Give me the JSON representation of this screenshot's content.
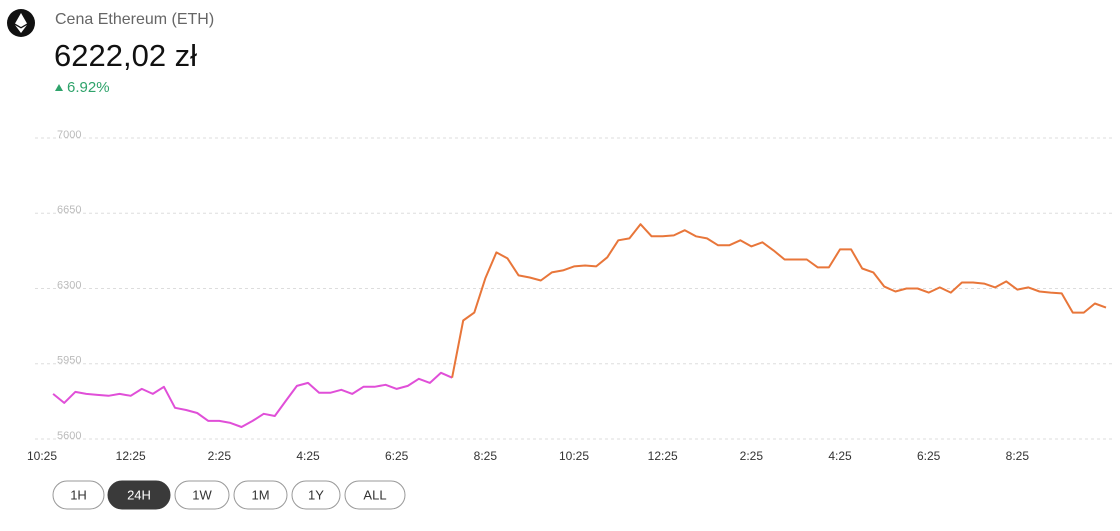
{
  "header": {
    "title": "Cena Ethereum (ETH)",
    "price": "6222,02 zł",
    "change": "6.92%"
  },
  "chart_data": {
    "type": "line",
    "x": [
      15,
      30,
      45,
      60,
      75,
      90,
      105,
      120,
      135,
      150,
      165,
      180,
      195,
      210,
      225,
      240,
      255,
      270,
      285,
      300,
      315,
      330,
      345,
      360,
      375,
      390,
      405,
      420,
      435,
      450,
      465,
      480,
      495,
      510,
      525,
      540,
      555,
      570,
      585,
      600,
      615,
      630,
      645,
      660,
      675,
      690,
      705,
      720,
      735,
      750,
      765,
      780,
      795,
      810,
      825,
      840,
      855,
      870,
      885,
      900,
      915,
      930,
      945,
      960,
      975,
      990,
      1005,
      1020,
      1035,
      1050,
      1065,
      1080,
      1095,
      1110,
      1125,
      1140,
      1155,
      1170,
      1185,
      1200,
      1215,
      1230,
      1245,
      1260,
      1275,
      1290,
      1305,
      1320,
      1335,
      1350,
      1365,
      1380,
      1395,
      1410,
      1425,
      1440
    ],
    "series": [
      {
        "color": "#e04fd8",
        "values": [
          5810,
          5768,
          5819,
          5810,
          5805,
          5801,
          5810,
          5801,
          5833,
          5810,
          5843,
          5745,
          5735,
          5721,
          5684,
          5684,
          5675,
          5656,
          5684,
          5717,
          5707,
          5777,
          5847,
          5861,
          5815,
          5815,
          5829,
          5810,
          5843,
          5843,
          5852,
          5833,
          5847,
          5880,
          5861,
          5908,
          5885,
          null,
          null,
          null,
          null,
          null,
          null,
          null,
          null,
          null,
          null,
          null,
          null,
          null,
          null,
          null,
          null,
          null,
          null,
          null,
          null,
          null,
          null,
          null,
          null,
          null,
          null,
          null,
          null,
          null,
          null,
          null,
          null,
          null,
          null,
          null,
          null,
          null,
          null,
          null,
          null,
          null,
          null,
          null,
          null,
          null,
          null,
          null,
          null,
          null,
          null,
          null,
          null,
          null,
          null,
          null,
          null,
          null,
          null,
          null
        ]
      },
      {
        "color": "#e8763a",
        "values": [
          null,
          null,
          null,
          null,
          null,
          null,
          null,
          null,
          null,
          null,
          null,
          null,
          null,
          null,
          null,
          null,
          null,
          null,
          null,
          null,
          null,
          null,
          null,
          null,
          null,
          null,
          null,
          null,
          null,
          null,
          null,
          null,
          null,
          null,
          null,
          null,
          5885,
          6151,
          6188,
          6347,
          6468,
          6440,
          6361,
          6351,
          6337,
          6375,
          6384,
          6403,
          6407,
          6403,
          6445,
          6524,
          6533,
          6599,
          6543,
          6543,
          6547,
          6571,
          6543,
          6533,
          6501,
          6501,
          6524,
          6496,
          6515,
          6477,
          6435,
          6435,
          6435,
          6398,
          6398,
          6482,
          6482,
          6393,
          6375,
          6309,
          6286,
          6300,
          6300,
          6281,
          6305,
          6281,
          6328,
          6328,
          6323,
          6305,
          6333,
          6295,
          6305,
          6286,
          6281,
          6277,
          6188,
          6188,
          6230,
          6211
        ]
      }
    ],
    "xlim": [
      0,
      1440
    ],
    "xticks": [
      {
        "value": 0,
        "label": "10:25"
      },
      {
        "value": 120,
        "label": "12:25"
      },
      {
        "value": 240,
        "label": "2:25"
      },
      {
        "value": 360,
        "label": "4:25"
      },
      {
        "value": 480,
        "label": "6:25"
      },
      {
        "value": 600,
        "label": "8:25"
      },
      {
        "value": 720,
        "label": "10:25"
      },
      {
        "value": 840,
        "label": "12:25"
      },
      {
        "value": 960,
        "label": "2:25"
      },
      {
        "value": 1080,
        "label": "4:25"
      },
      {
        "value": 1200,
        "label": "6:25"
      },
      {
        "value": 1320,
        "label": "8:25"
      }
    ],
    "ylim": [
      5600,
      7000
    ],
    "yticks": [
      5600,
      5950,
      6300,
      6650,
      7000
    ],
    "grid": true
  },
  "buttons": [
    {
      "label": "1H",
      "selected": false
    },
    {
      "label": "24H",
      "selected": true
    },
    {
      "label": "1W",
      "selected": false
    },
    {
      "label": "1M",
      "selected": false
    },
    {
      "label": "1Y",
      "selected": false
    },
    {
      "label": "ALL",
      "selected": false
    }
  ]
}
